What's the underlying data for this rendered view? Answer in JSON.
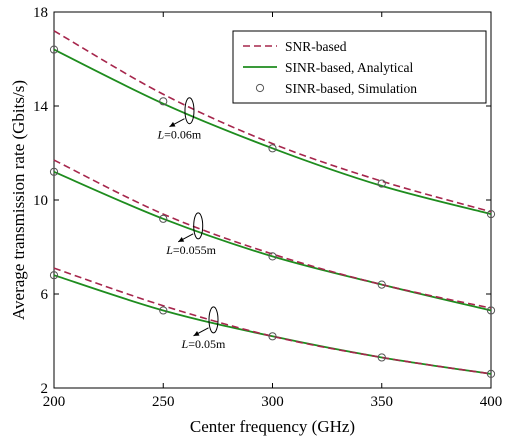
{
  "chart_data": {
    "type": "line",
    "xlabel": "Center frequency (GHz)",
    "ylabel": "Average transmission rate (Gbits/s)",
    "xlim": [
      200,
      400
    ],
    "ylim": [
      2,
      18
    ],
    "xticks": [
      "200",
      "250",
      "300",
      "350",
      "400"
    ],
    "yticks": [
      "2",
      "6",
      "10",
      "14",
      "18"
    ],
    "grid": false,
    "legend_position": "top-right",
    "colors": {
      "snr": "#a6264c",
      "sinr_analytical": "#1e8c1e",
      "sinr_simulation": "#555555"
    },
    "legend": [
      {
        "key": "snr",
        "label": "SNR-based",
        "style": "dashed"
      },
      {
        "key": "sinr_analytical",
        "label": "SINR-based, Analytical",
        "style": "solid"
      },
      {
        "key": "sinr_simulation",
        "label": "SINR-based, Simulation",
        "style": "marker"
      }
    ],
    "groups": [
      {
        "label_var": "L",
        "label_value": "=0.06m",
        "x": [
          200,
          250,
          300,
          350,
          400
        ],
        "snr": [
          17.2,
          14.5,
          12.4,
          10.8,
          9.5
        ],
        "sinr_analytical": [
          16.4,
          14.1,
          12.2,
          10.6,
          9.4
        ],
        "sinr_simulation": [
          16.4,
          14.2,
          12.2,
          10.7,
          9.4
        ],
        "annotation_at": {
          "x": 262,
          "y": 13.8
        }
      },
      {
        "label_var": "L",
        "label_value": "=0.055m",
        "x": [
          200,
          250,
          300,
          350,
          400
        ],
        "snr": [
          11.7,
          9.4,
          7.7,
          6.4,
          5.4
        ],
        "sinr_analytical": [
          11.2,
          9.2,
          7.6,
          6.4,
          5.3
        ],
        "sinr_simulation": [
          11.2,
          9.2,
          7.6,
          6.4,
          5.3
        ],
        "annotation_at": {
          "x": 266,
          "y": 8.9
        }
      },
      {
        "label_var": "L",
        "label_value": "=0.05m",
        "x": [
          200,
          250,
          300,
          350,
          400
        ],
        "snr": [
          7.1,
          5.5,
          4.2,
          3.3,
          2.6
        ],
        "sinr_analytical": [
          6.8,
          5.3,
          4.2,
          3.3,
          2.6
        ],
        "sinr_simulation": [
          6.8,
          5.3,
          4.2,
          3.3,
          2.6
        ],
        "annotation_at": {
          "x": 273,
          "y": 4.9
        }
      }
    ]
  }
}
